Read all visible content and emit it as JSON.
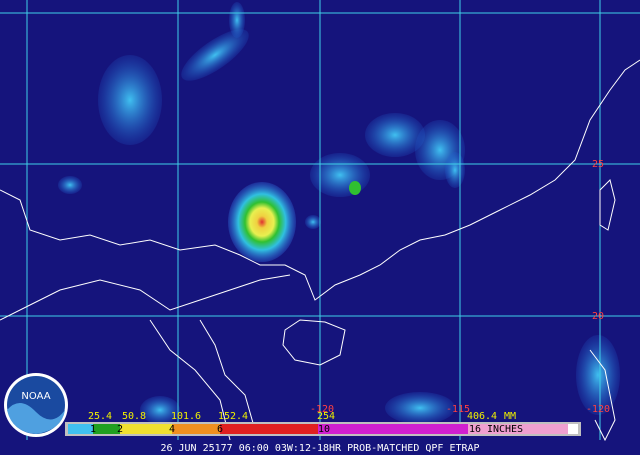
{
  "map": {
    "footer": "26 JUN 25177 06:00 03W:12-18HR PROB-MATCHED QPF ETRAP",
    "logo": "NOAA",
    "lat_labels": [
      "25",
      "20"
    ],
    "lon_labels": [
      "-120",
      "-115",
      "-120"
    ],
    "scale": {
      "mm": [
        "25.4",
        "50.8",
        "101.6",
        "152.4",
        "254",
        "406.4"
      ],
      "mm_unit": "MM",
      "inches": [
        "1",
        "2",
        "4",
        "6",
        "10",
        "16"
      ],
      "inch_unit": "INCHES"
    }
  }
}
